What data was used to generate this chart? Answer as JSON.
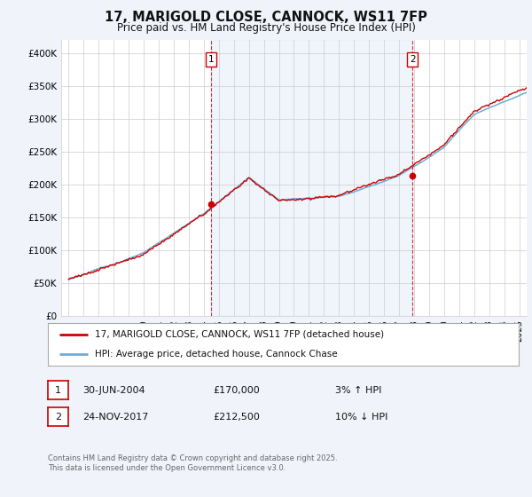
{
  "title": "17, MARIGOLD CLOSE, CANNOCK, WS11 7FP",
  "subtitle": "Price paid vs. HM Land Registry's House Price Index (HPI)",
  "legend_line1": "17, MARIGOLD CLOSE, CANNOCK, WS11 7FP (detached house)",
  "legend_line2": "HPI: Average price, detached house, Cannock Chase",
  "footnote": "Contains HM Land Registry data © Crown copyright and database right 2025.\nThis data is licensed under the Open Government Licence v3.0.",
  "annotation1_label": "1",
  "annotation1_date": "30-JUN-2004",
  "annotation1_price": "£170,000",
  "annotation1_hpi": "3% ↑ HPI",
  "annotation2_label": "2",
  "annotation2_date": "24-NOV-2017",
  "annotation2_price": "£212,500",
  "annotation2_hpi": "10% ↓ HPI",
  "hpi_color": "#6baed6",
  "hpi_fill_color": "#ddeeff",
  "price_color": "#cc0000",
  "background_color": "#f0f4fa",
  "plot_bg_color": "#ffffff",
  "sale1_x": 2004.5,
  "sale1_y": 170000,
  "sale2_x": 2017.9,
  "sale2_y": 212500,
  "ylim": [
    0,
    420000
  ],
  "yticks": [
    0,
    50000,
    100000,
    150000,
    200000,
    250000,
    300000,
    350000,
    400000
  ],
  "xlim_start": 1994.5,
  "xlim_end": 2025.5
}
